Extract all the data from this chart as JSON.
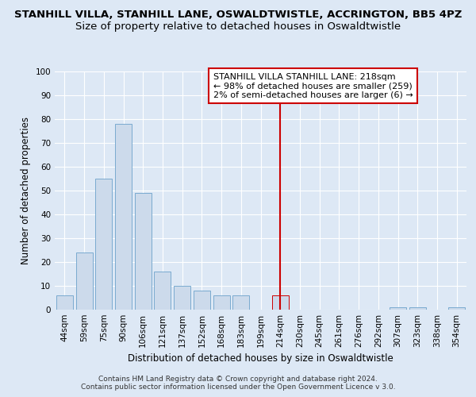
{
  "title": "STANHILL VILLA, STANHILL LANE, OSWALDTWISTLE, ACCRINGTON, BB5 4PZ",
  "subtitle": "Size of property relative to detached houses in Oswaldtwistle",
  "xlabel": "Distribution of detached houses by size in Oswaldtwistle",
  "ylabel": "Number of detached properties",
  "categories": [
    "44sqm",
    "59sqm",
    "75sqm",
    "90sqm",
    "106sqm",
    "121sqm",
    "137sqm",
    "152sqm",
    "168sqm",
    "183sqm",
    "199sqm",
    "214sqm",
    "230sqm",
    "245sqm",
    "261sqm",
    "276sqm",
    "292sqm",
    "307sqm",
    "323sqm",
    "338sqm",
    "354sqm"
  ],
  "values": [
    6,
    24,
    55,
    78,
    49,
    16,
    10,
    8,
    6,
    6,
    0,
    6,
    0,
    0,
    0,
    0,
    0,
    1,
    1,
    0,
    1
  ],
  "bar_color": "#ccdaeb",
  "bar_edge_color": "#7aaad0",
  "highlight_bar_index": 11,
  "highlight_bar_color": "#ccdaeb",
  "highlight_bar_edge_color": "#cc0000",
  "vline_color": "#cc0000",
  "annotation_text": "STANHILL VILLA STANHILL LANE: 218sqm\n← 98% of detached houses are smaller (259)\n2% of semi-detached houses are larger (6) →",
  "annotation_box_color": "#ffffff",
  "annotation_border_color": "#cc0000",
  "ylim": [
    0,
    100
  ],
  "yticks": [
    0,
    10,
    20,
    30,
    40,
    50,
    60,
    70,
    80,
    90,
    100
  ],
  "footer": "Contains HM Land Registry data © Crown copyright and database right 2024.\nContains public sector information licensed under the Open Government Licence v 3.0.",
  "bg_color": "#dde8f5",
  "plot_bg_color": "#dde8f5",
  "grid_color": "#ffffff",
  "title_fontsize": 9.5,
  "subtitle_fontsize": 9.5,
  "axis_label_fontsize": 8.5,
  "tick_fontsize": 7.5,
  "footer_fontsize": 6.5
}
